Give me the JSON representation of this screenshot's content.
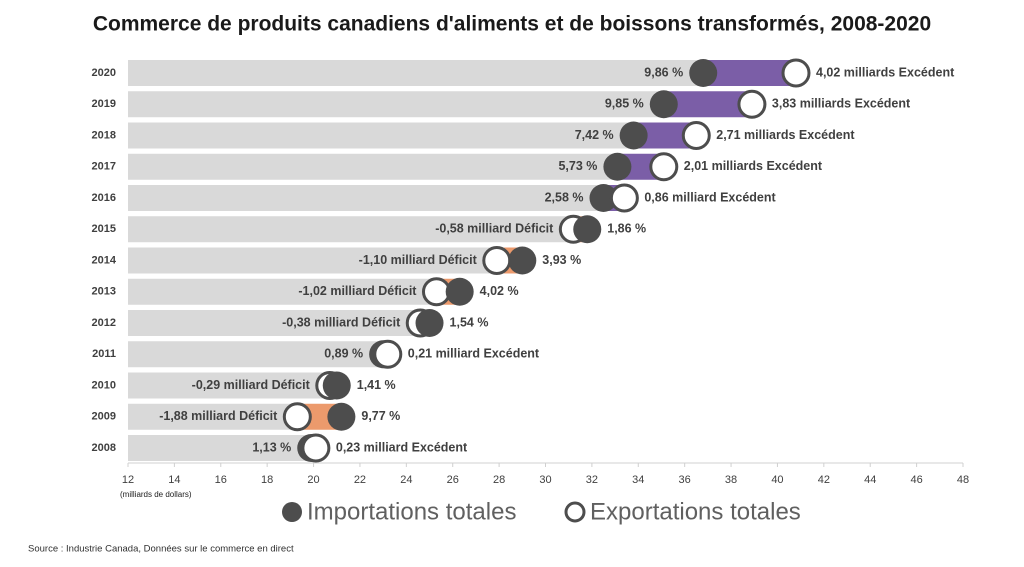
{
  "chart_data": {
    "type": "dumbbell",
    "title": "Commerce de produits canadiens d'aliments et de boissons transformés, 2008-2020",
    "x_label": "(milliards de dollars)",
    "source": "Source : Industrie Canada, Données sur le commerce en direct",
    "categories": [
      "2020",
      "2019",
      "2018",
      "2017",
      "2016",
      "2015",
      "2014",
      "2013",
      "2012",
      "2011",
      "2010",
      "2009",
      "2008"
    ],
    "series": [
      {
        "name": "Importations totales",
        "color": "#4d4d4d",
        "values": [
          36.8,
          35.1,
          33.8,
          33.1,
          32.5,
          31.8,
          29.0,
          26.3,
          25.0,
          23.0,
          21.0,
          21.2,
          19.9
        ]
      },
      {
        "name": "Exportations totales",
        "color": "#ffffff",
        "values": [
          40.8,
          38.9,
          36.5,
          35.1,
          33.4,
          31.2,
          27.9,
          25.3,
          24.6,
          23.2,
          20.7,
          19.3,
          20.1
        ]
      }
    ],
    "change_labels": [
      "9,86 %",
      "9,85 %",
      "7,42 %",
      "5,73 %",
      "2,58 %",
      "1,86 %",
      "3,93 %",
      "4,02 %",
      "1,54 %",
      "0,89 %",
      "1,41 %",
      "9,77 %",
      "1,13 %"
    ],
    "balance_labels": [
      "4,02 milliards Excédent",
      "3,83 milliards Excédent",
      "2,71 milliards Excédent",
      "2,01 milliards Excédent",
      "0,86 milliard Excédent",
      "-0,58 milliard Déficit",
      "-1,10 milliard Déficit",
      "-1,02 milliard Déficit",
      "-0,38 milliard Déficit",
      "0,21 milliard Excédent",
      "-0,29 milliard Déficit",
      "-1,88 milliard Déficit",
      "0,23 milliard Excédent"
    ],
    "surplus_color": "#7b5ea7",
    "deficit_color": "#ec9a6c",
    "bar_color": "#d9d9d9",
    "xlim": [
      12,
      48
    ],
    "xticks": [
      12,
      14,
      16,
      18,
      20,
      22,
      24,
      26,
      28,
      30,
      32,
      34,
      36,
      38,
      40,
      42,
      44,
      46,
      48
    ]
  }
}
